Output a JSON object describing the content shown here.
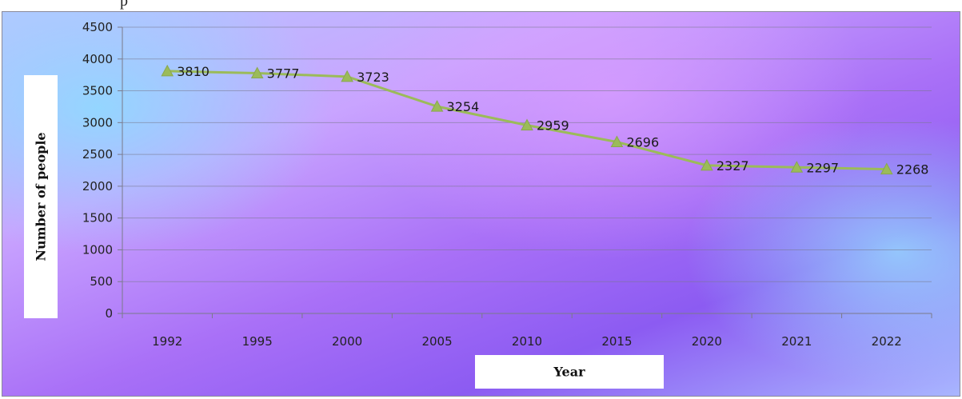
{
  "chart_data": {
    "type": "line",
    "categories": [
      "1992",
      "1995",
      "2000",
      "2005",
      "2010",
      "2015",
      "2020",
      "2021",
      "2022"
    ],
    "series": [
      {
        "values": [
          3810,
          3777,
          3723,
          3254,
          2959,
          2696,
          2327,
          2297,
          2268
        ],
        "color": "#9bbb59",
        "marker": "triangle"
      }
    ],
    "data_labels": [
      "3810",
      "3777",
      "3723",
      "3254",
      "2959",
      "2696",
      "2327",
      "2297",
      "2268"
    ],
    "xlabel": "Year",
    "ylabel": "Number of people",
    "ylim": [
      0,
      4500
    ],
    "yticks": [
      0,
      500,
      1000,
      1500,
      2000,
      2500,
      3000,
      3500,
      4000,
      4500
    ],
    "grid": true,
    "legend": "none"
  }
}
